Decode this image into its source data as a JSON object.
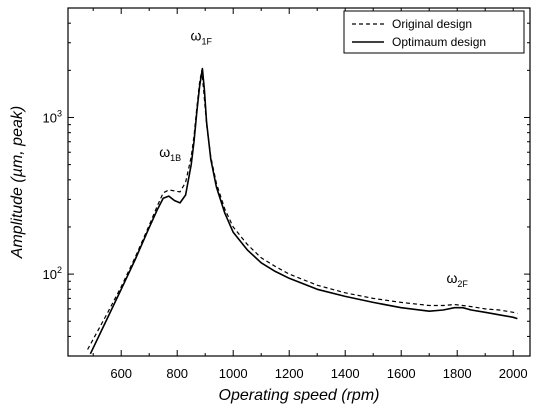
{
  "chart_data": {
    "type": "line",
    "title": "",
    "xlabel": "Operating speed (rpm)",
    "ylabel": "Amplitude (µm, peak)",
    "y_scale": "log",
    "xlim": [
      410,
      2060
    ],
    "ylim": [
      30,
      5000
    ],
    "grid": false,
    "legend": "top-right",
    "x_ticks": [
      600,
      800,
      1000,
      1200,
      1400,
      1600,
      1800,
      2000
    ],
    "x_tick_labels": [
      "600",
      "800",
      "1000",
      "1200",
      "1400",
      "1600",
      "1800",
      "2000"
    ],
    "y_ticks": [
      100,
      1000
    ],
    "series": [
      {
        "name": "Original design",
        "style": "dashed",
        "x": [
          480,
          550,
          600,
          650,
          700,
          730,
          750,
          770,
          790,
          810,
          830,
          850,
          860,
          870,
          880,
          888,
          895,
          905,
          920,
          940,
          970,
          1000,
          1050,
          1100,
          1150,
          1200,
          1300,
          1400,
          1500,
          1600,
          1700,
          1750,
          1790,
          1820,
          1850,
          1900,
          1950,
          2000,
          2015
        ],
        "y": [
          33,
          56,
          83,
          128,
          205,
          275,
          330,
          345,
          340,
          335,
          385,
          560,
          760,
          1150,
          1680,
          2000,
          1450,
          900,
          560,
          380,
          260,
          200,
          155,
          127,
          112,
          100,
          85,
          76,
          70,
          66,
          63,
          63,
          64,
          63,
          62,
          60,
          59,
          57,
          56
        ]
      },
      {
        "name": "Optimaum design",
        "style": "solid",
        "x": [
          490,
          550,
          600,
          650,
          700,
          730,
          750,
          770,
          790,
          810,
          830,
          850,
          860,
          870,
          880,
          890,
          897,
          905,
          920,
          940,
          970,
          1000,
          1050,
          1100,
          1150,
          1200,
          1300,
          1400,
          1500,
          1600,
          1700,
          1750,
          1790,
          1820,
          1850,
          1900,
          1950,
          2000,
          2015
        ],
        "y": [
          31,
          52,
          80,
          124,
          198,
          260,
          305,
          315,
          295,
          285,
          320,
          500,
          700,
          1080,
          1580,
          2050,
          1500,
          930,
          540,
          360,
          245,
          185,
          143,
          118,
          104,
          94,
          80,
          72,
          66,
          61,
          58,
          59,
          61,
          61,
          59,
          57,
          55,
          53,
          52
        ]
      }
    ],
    "annotations": [
      {
        "base": "ω",
        "sub": "1B",
        "x": 775,
        "y": 560
      },
      {
        "base": "ω",
        "sub": "1F",
        "x": 886,
        "y": 3100
      },
      {
        "base": "ω",
        "sub": "2F",
        "x": 1800,
        "y": 88
      }
    ]
  }
}
